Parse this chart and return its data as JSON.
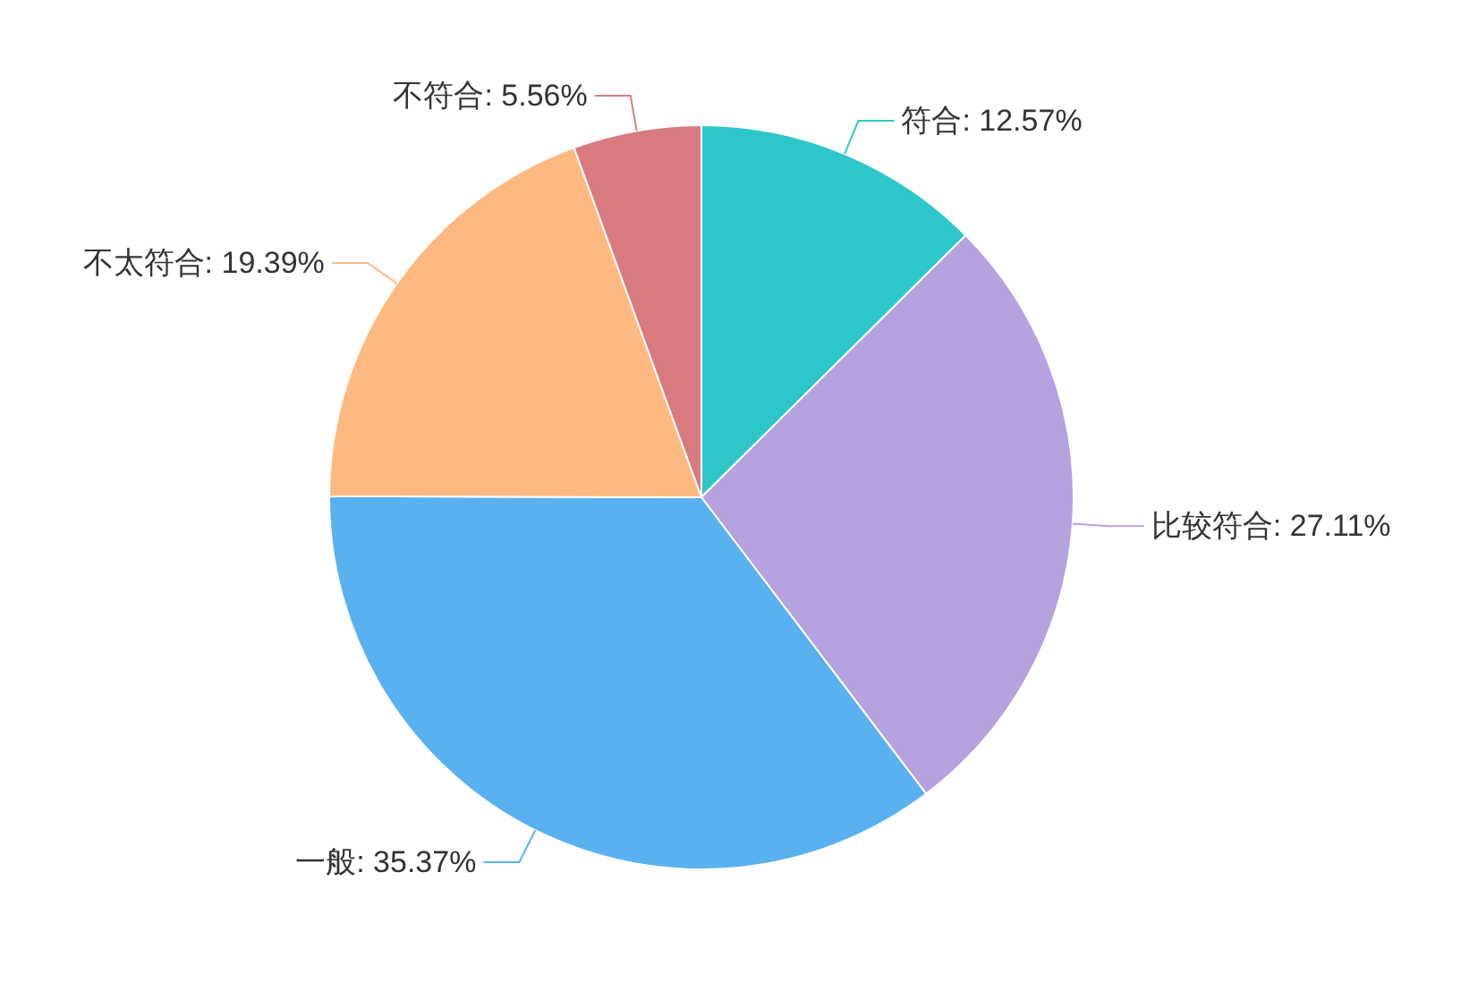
{
  "chart_data": {
    "type": "pie",
    "categories": [
      "符合",
      "比较符合",
      "一般",
      "不太符合",
      "不符合"
    ],
    "values": [
      12.57,
      27.11,
      35.37,
      19.39,
      5.56
    ],
    "colors": [
      "#2ec7c9",
      "#b6a2de",
      "#5ab1ef",
      "#ffb980",
      "#d87a80"
    ],
    "value_labels": [
      ": 12.57%",
      ": 27.11%",
      ": 35.37%",
      ": 19.39%",
      ": 5.56%"
    ]
  }
}
